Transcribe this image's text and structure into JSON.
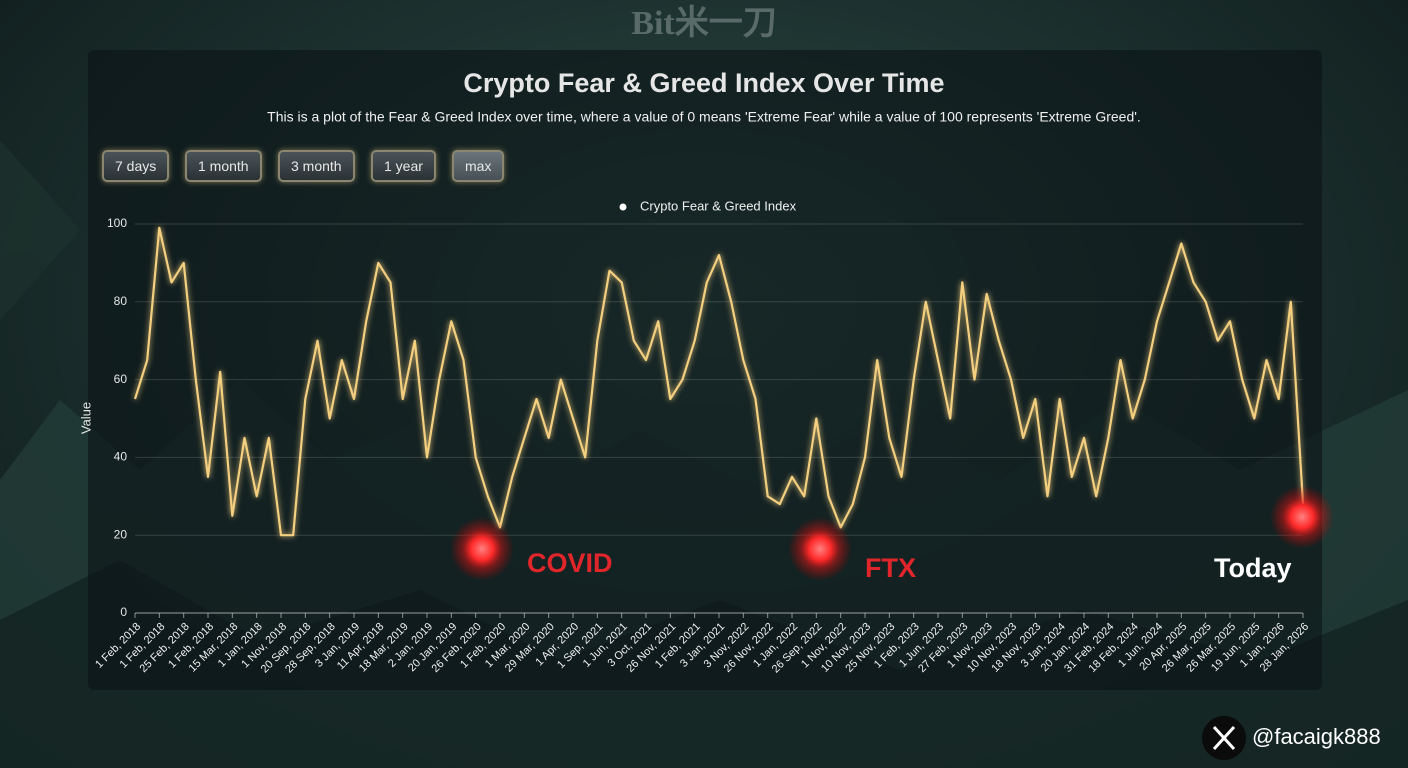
{
  "watermark": "Bit米一刀",
  "chart_data": {
    "type": "line",
    "title": "Crypto Fear & Greed Index Over Time",
    "subtitle": "This is a plot of the Fear & Greed Index over time, where a value of 0 means 'Extreme Fear' while a value of 100 represents 'Extreme Greed'.",
    "range_buttons": [
      "7 days",
      "1 month",
      "3 month",
      "1 year",
      "max"
    ],
    "y_label": "Value",
    "categories": [
      "1 Feb, 2018",
      null,
      "1 Feb, 2018",
      null,
      "25 Feb, 2018",
      null,
      "1 Feb, 2018",
      null,
      "15 Mar, 2018",
      null,
      "1 Jan, 2018",
      null,
      "1 Nov, 2018",
      null,
      "20 Sep, 2018",
      null,
      "28 Sep, 2018",
      null,
      "3 Jan, 2019",
      null,
      "11 Apr, 2018",
      null,
      "18 Mar, 2019",
      null,
      "2 Jan, 2019",
      null,
      "20 Jan, 2019",
      null,
      "26 Feb, 2020",
      null,
      "1 Feb, 2020",
      null,
      "1 Mar, 2020",
      null,
      "29 Mar, 2020",
      null,
      "1 Apr, 2020",
      null,
      "1 Sep, 2021",
      null,
      "1 Jun, 2021",
      null,
      "3 Oct, 2021",
      null,
      "26 Nov, 2021",
      null,
      "1 Feb, 2021",
      null,
      "3 Jan, 2021",
      null,
      "3 Nov, 2022",
      null,
      "26 Nov, 2022",
      null,
      "1 Jan, 2022",
      null,
      "26 Sep, 2022",
      null,
      "1 Nov, 2022",
      null,
      "10 Nov, 2023",
      null,
      "25 Nov, 2023",
      null,
      "1 Feb, 2023",
      null,
      "1 Jun, 2023",
      null,
      "27 Feb, 2023",
      null,
      "1 Nov, 2023",
      null,
      "10 Nov, 2023",
      null,
      "18 Nov, 2023",
      null,
      "3 Jan, 2024",
      null,
      "20 Jan, 2024",
      null,
      "31 Feb, 2024",
      null,
      "18 Feb, 2024",
      null,
      "1 Jun, 2024",
      null,
      "20 Apr, 2025",
      null,
      "26 Mar, 2025",
      null,
      "26 Mar, 2025",
      null,
      "19 Jun, 2025",
      null,
      "1 Jan, 2026",
      null,
      "28 Jan, 2026"
    ],
    "series": [
      {
        "name": "Crypto Fear & Greed Index",
        "color": "#f3cf7f",
        "values": [
          55,
          65,
          99,
          85,
          90,
          60,
          35,
          62,
          25,
          45,
          30,
          45,
          20,
          20,
          55,
          70,
          50,
          65,
          55,
          75,
          90,
          85,
          55,
          70,
          40,
          60,
          75,
          65,
          40,
          30,
          22,
          35,
          45,
          55,
          45,
          60,
          50,
          40,
          70,
          88,
          85,
          70,
          65,
          75,
          55,
          60,
          70,
          85,
          92,
          80,
          65,
          55,
          30,
          28,
          35,
          30,
          50,
          30,
          22,
          28,
          40,
          65,
          45,
          35,
          60,
          80,
          65,
          50,
          85,
          60,
          82,
          70,
          60,
          45,
          55,
          30,
          55,
          35,
          45,
          30,
          45,
          65,
          50,
          60,
          75,
          85,
          95,
          85,
          80,
          70,
          75,
          60,
          50,
          65,
          55,
          80,
          28
        ]
      }
    ],
    "ylim": [
      0,
      100
    ],
    "yticks": [
      0,
      20,
      40,
      60,
      80,
      100
    ],
    "grid": true,
    "legend": "top",
    "annotations": [
      "COVID",
      "FTX",
      "Today"
    ]
  },
  "footer": {
    "handle": "@facaigk888"
  }
}
